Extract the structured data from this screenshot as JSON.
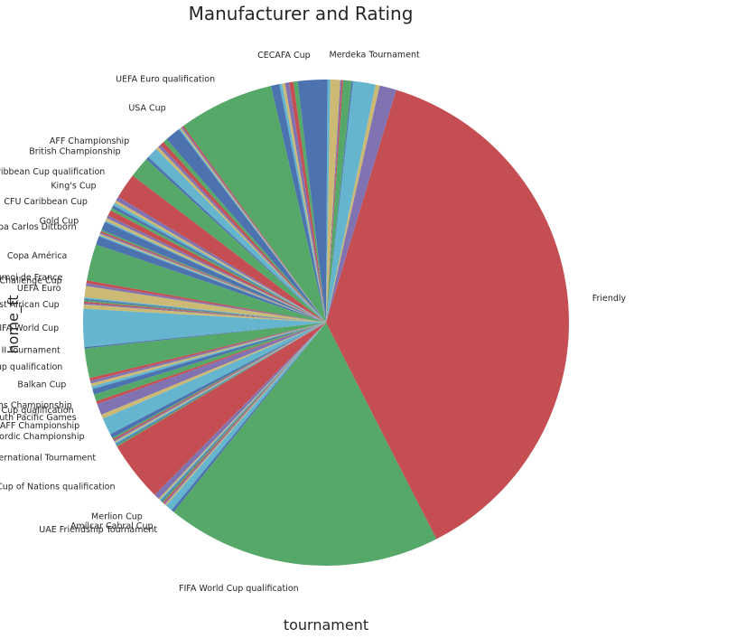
{
  "chart_data": {
    "type": "pie",
    "title": "Manufacturer and Rating",
    "xlabel": "tournament",
    "ylabel": "home_ft",
    "start_angle_deg": 90,
    "counterclock": true,
    "color_cycle": [
      "#4c72b0",
      "#55a868",
      "#c44e52",
      "#8172b2",
      "#ccb974",
      "#64b5cd"
    ],
    "slices": [
      {
        "label": "CECAFA Cup",
        "value": 2.0
      },
      {
        "label": "",
        "value": 0.3
      },
      {
        "label": "",
        "value": 0.3
      },
      {
        "label": "",
        "value": 0.3
      },
      {
        "label": "",
        "value": 0.2
      },
      {
        "label": "",
        "value": 0.2
      },
      {
        "label": "",
        "value": 0.6
      },
      {
        "label": "UEFA Euro qualification",
        "value": 6.8
      },
      {
        "label": "",
        "value": 0.1
      },
      {
        "label": "",
        "value": 0.1
      },
      {
        "label": "USA Cup",
        "value": 0.1
      },
      {
        "label": "",
        "value": 0.1
      },
      {
        "label": "",
        "value": 1.1
      },
      {
        "label": "",
        "value": 0.3
      },
      {
        "label": "",
        "value": 0.3
      },
      {
        "label": "",
        "value": 0.2
      },
      {
        "label": "",
        "value": 0.2
      },
      {
        "label": "",
        "value": 0.8
      },
      {
        "label": "AFF Championship",
        "value": 0.2
      },
      {
        "label": "British Championship",
        "value": 1.5
      },
      {
        "label": "CFU Caribbean Cup qualification",
        "value": 1.8
      },
      {
        "label": "King's Cup",
        "value": 0.3
      },
      {
        "label": "",
        "value": 0.2
      },
      {
        "label": "",
        "value": 0.2
      },
      {
        "label": "",
        "value": 0.2
      },
      {
        "label": "",
        "value": 0.2
      },
      {
        "label": "CFU Caribbean Cup",
        "value": 0.4
      },
      {
        "label": "",
        "value": 0.2
      },
      {
        "label": "",
        "value": 0.2
      },
      {
        "label": "",
        "value": 0.1
      },
      {
        "label": "",
        "value": 0.6
      },
      {
        "label": "Gold Cup",
        "value": 0.1
      },
      {
        "label": "",
        "value": 0.1
      },
      {
        "label": "",
        "value": 0.1
      },
      {
        "label": "",
        "value": 0.1
      },
      {
        "label": "Copa Carlos Dittborn",
        "value": 0.1
      },
      {
        "label": "",
        "value": 0.6
      },
      {
        "label": "Copa América",
        "value": 2.6
      },
      {
        "label": "Tournoi de France",
        "value": 0.2
      },
      {
        "label": "AFC Challenge Cup",
        "value": 0.2
      },
      {
        "label": "UEFA Euro",
        "value": 0.8
      },
      {
        "label": "",
        "value": 0.1
      },
      {
        "label": "",
        "value": 0.1
      },
      {
        "label": "",
        "value": 0.1
      },
      {
        "label": "",
        "value": 0.1
      },
      {
        "label": "",
        "value": 0.1
      },
      {
        "label": "West African Cup",
        "value": 0.3
      },
      {
        "label": "FIFA World Cup",
        "value": 2.7
      },
      {
        "label": "King Hassan II Tournament",
        "value": 0.1
      },
      {
        "label": "AFC Asian Cup qualification",
        "value": 2.1
      },
      {
        "label": "Balkan Cup",
        "value": 0.2
      },
      {
        "label": "",
        "value": 0.2
      },
      {
        "label": "",
        "value": 0.2
      },
      {
        "label": "",
        "value": 0.2
      },
      {
        "label": "",
        "value": 0.4
      },
      {
        "label": "African Nations Championship",
        "value": 0.5
      },
      {
        "label": "Gold Cup qualification",
        "value": 0.2
      },
      {
        "label": "South Pacific Games",
        "value": 0.8
      },
      {
        "label": "WAFF Championship",
        "value": 0.3
      },
      {
        "label": "Nordic Championship",
        "value": 1.2
      },
      {
        "label": "",
        "value": 0.3
      },
      {
        "label": "",
        "value": 0.1
      },
      {
        "label": "",
        "value": 0.1
      },
      {
        "label": "",
        "value": 0.1
      },
      {
        "label": "",
        "value": 0.1
      },
      {
        "label": "",
        "value": 0.1
      },
      {
        "label": "",
        "value": 0.1
      },
      {
        "label": "Malta International Tournament",
        "value": 0.1
      },
      {
        "label": "African Cup of Nations qualification",
        "value": 4.3
      },
      {
        "label": "",
        "value": 0.4
      },
      {
        "label": "Merlion Cup",
        "value": 0.1
      },
      {
        "label": "",
        "value": 0.1
      },
      {
        "label": "",
        "value": 0.1
      },
      {
        "label": "",
        "value": 0.1
      },
      {
        "label": "",
        "value": 0.1
      },
      {
        "label": "",
        "value": 0.1
      },
      {
        "label": "",
        "value": 0.1
      },
      {
        "label": "Amílcar Cabral Cup",
        "value": 0.5
      },
      {
        "label": "UAE Friendship Tournament",
        "value": 0.2
      },
      {
        "label": "FIFA World Cup qualification",
        "value": 19.6
      },
      {
        "label": "Friendly",
        "value": 40.5
      },
      {
        "label": "",
        "value": 1.2
      },
      {
        "label": "",
        "value": 0.3
      },
      {
        "label": "",
        "value": 1.6
      },
      {
        "label": "",
        "value": 0.1
      },
      {
        "label": "",
        "value": 0.6
      },
      {
        "label": "",
        "value": 0.1
      },
      {
        "label": "",
        "value": 0.1
      },
      {
        "label": "",
        "value": 0.7
      },
      {
        "label": "Merdeka Tournament",
        "value": 0.2
      },
      {
        "label": "",
        "value": 0.1
      }
    ]
  }
}
